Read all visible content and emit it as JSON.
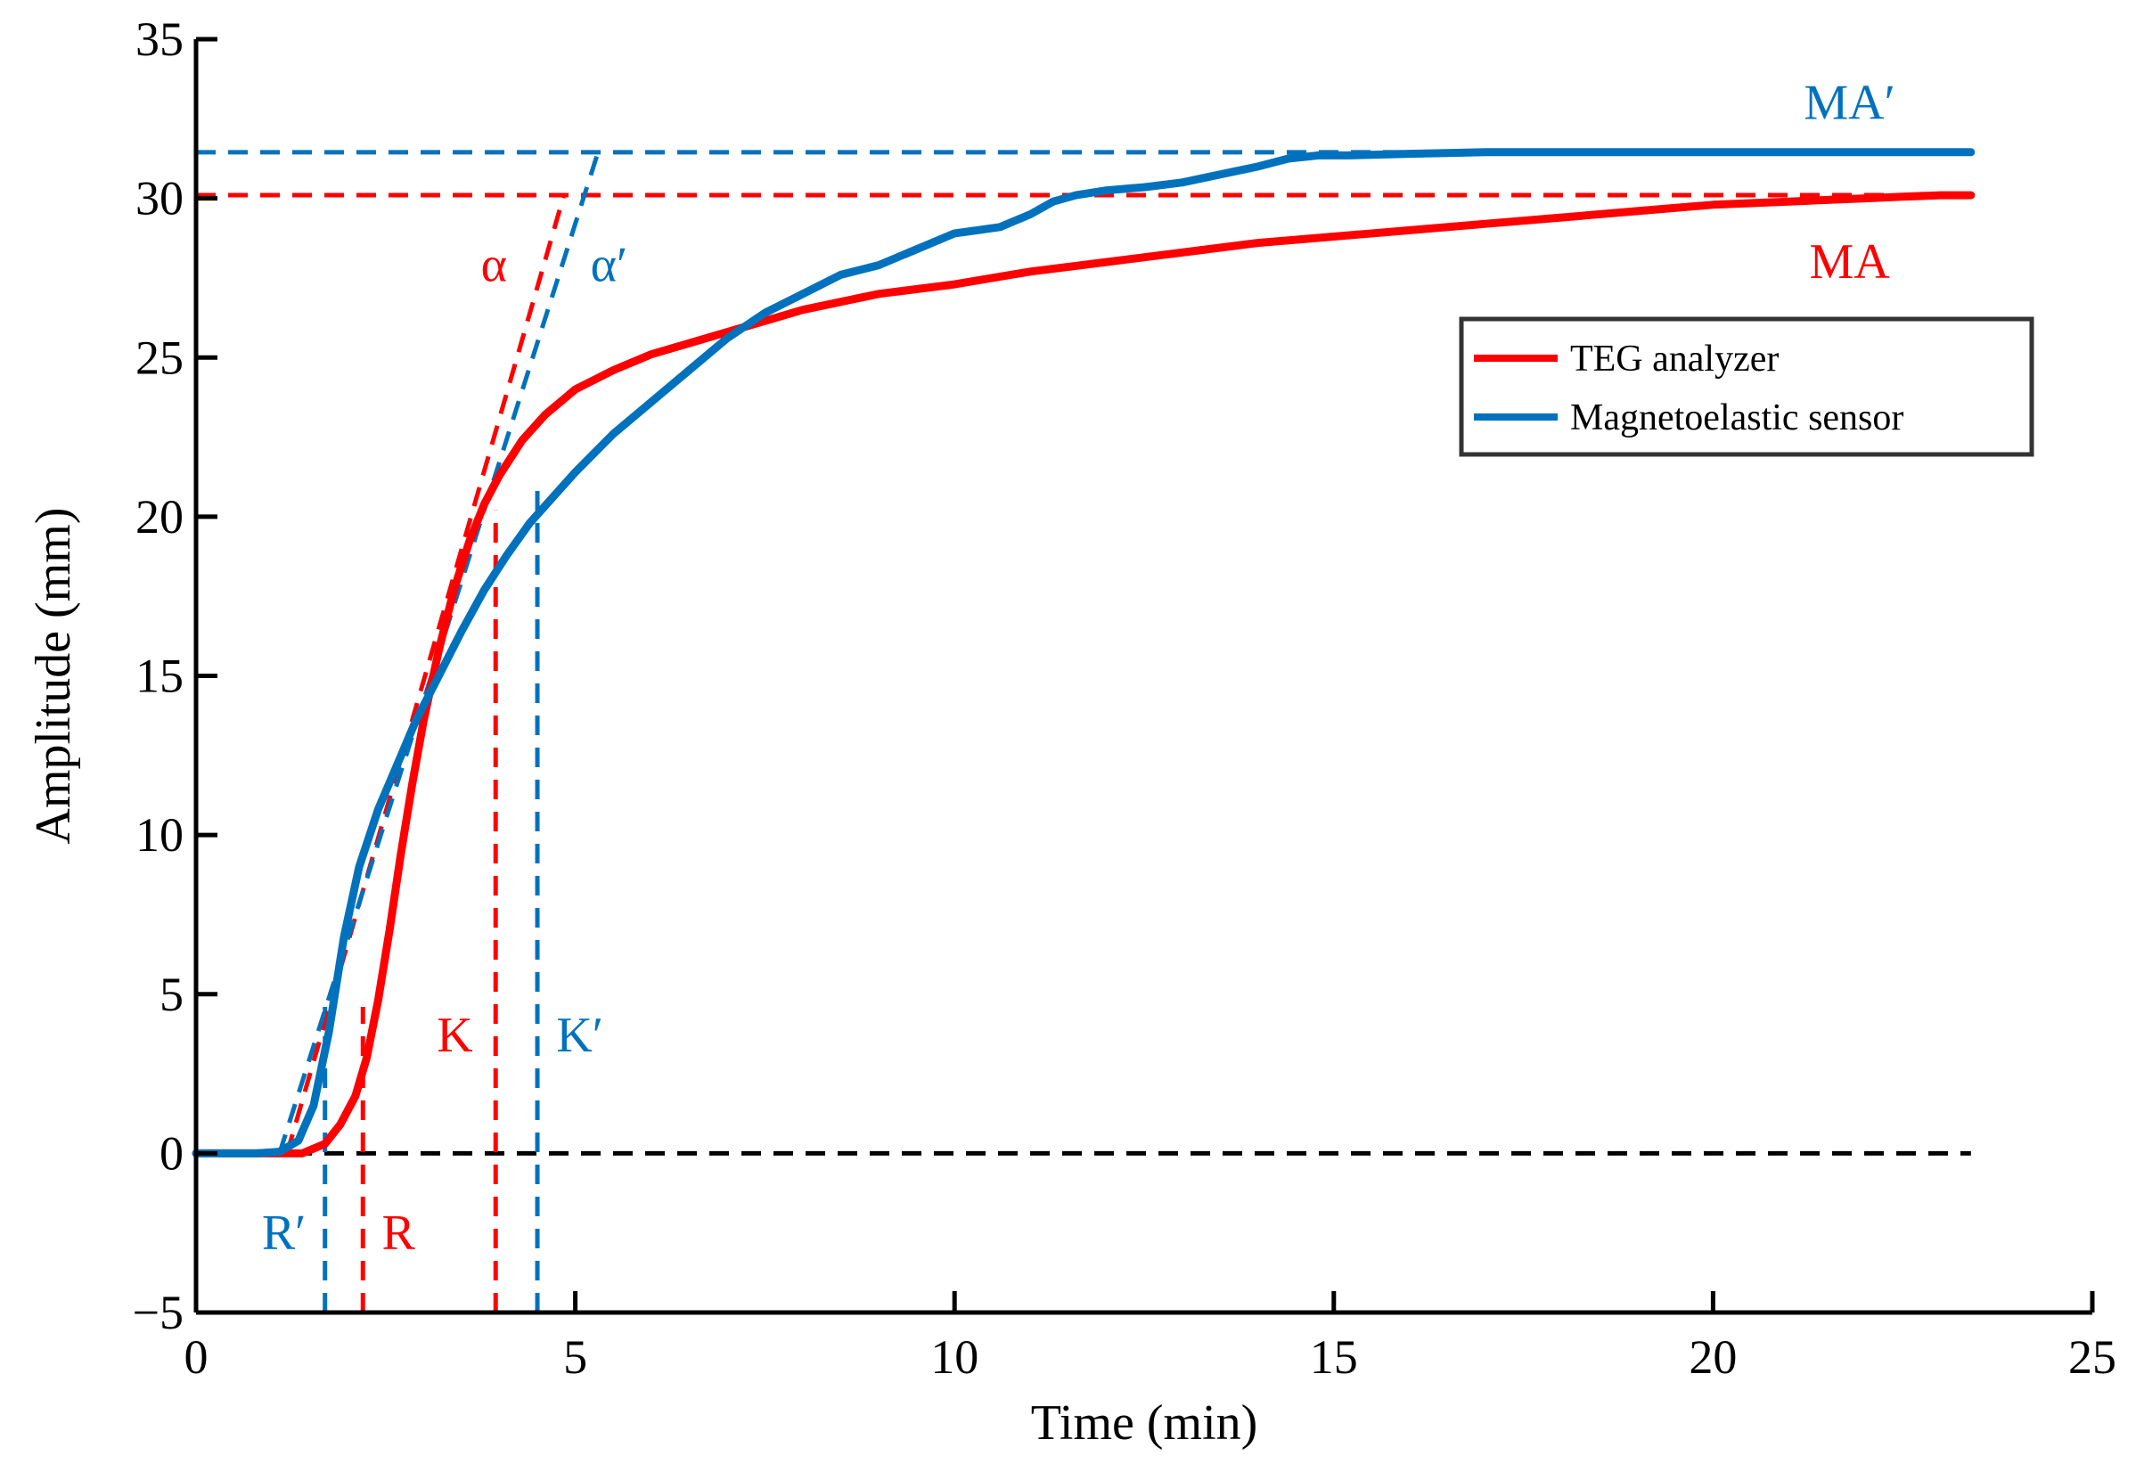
{
  "colors": {
    "teg": "#ff0000",
    "magneto": "#0072bd",
    "axis": "#000000",
    "background": "#ffffff"
  },
  "chart_data": {
    "type": "line",
    "title": "",
    "xlabel": "Time (min)",
    "ylabel": "Amplitude (mm)",
    "xlim": [
      0,
      25
    ],
    "ylim": [
      -5,
      35
    ],
    "xticks": [
      0,
      5,
      10,
      15,
      20,
      25
    ],
    "yticks": [
      -5,
      0,
      5,
      10,
      15,
      20,
      25,
      30,
      35
    ],
    "xtick_labels": [
      "0",
      "5",
      "10",
      "15",
      "20",
      "25"
    ],
    "ytick_labels": [
      "−5",
      "0",
      "5",
      "10",
      "15",
      "20",
      "25",
      "30",
      "35"
    ],
    "grid": false,
    "legend": {
      "position": "top-right",
      "entries": [
        {
          "name": "TEG analyzer",
          "color": "#ff0000"
        },
        {
          "name": "Magnetoelastic sensor",
          "color": "#0072bd"
        }
      ]
    },
    "series": [
      {
        "name": "TEG analyzer",
        "color": "#ff0000",
        "x": [
          0,
          1.0,
          1.4,
          1.7,
          1.9,
          2.1,
          2.25,
          2.4,
          2.55,
          2.7,
          2.85,
          3.0,
          3.2,
          3.4,
          3.6,
          3.8,
          4.0,
          4.3,
          4.6,
          5.0,
          5.5,
          6.0,
          7.0,
          8.0,
          9.0,
          10.0,
          11.0,
          12.0,
          13.0,
          14.0,
          15.0,
          16.0,
          17.0,
          18.0,
          19.0,
          20.0,
          21.0,
          22.0,
          22.5,
          23.0,
          23.4
        ],
        "y": [
          0,
          0,
          0,
          0.3,
          0.9,
          1.8,
          3.0,
          4.8,
          7.0,
          9.4,
          11.6,
          13.6,
          15.8,
          17.7,
          19.2,
          20.4,
          21.3,
          22.4,
          23.2,
          24.0,
          24.6,
          25.1,
          25.8,
          26.5,
          27.0,
          27.3,
          27.7,
          28.0,
          28.3,
          28.6,
          28.8,
          29.0,
          29.2,
          29.4,
          29.6,
          29.8,
          29.9,
          30.0,
          30.05,
          30.1,
          30.1
        ]
      },
      {
        "name": "Magnetoelastic sensor",
        "color": "#0072bd",
        "x": [
          0,
          0.8,
          1.1,
          1.35,
          1.55,
          1.75,
          1.95,
          2.15,
          2.4,
          2.65,
          2.9,
          3.2,
          3.5,
          3.8,
          4.1,
          4.4,
          4.7,
          5.0,
          5.5,
          6.0,
          6.5,
          7.0,
          7.5,
          8.0,
          8.5,
          9.0,
          9.3,
          9.6,
          10.0,
          10.3,
          10.6,
          11.0,
          11.3,
          11.6,
          12.0,
          12.5,
          13.0,
          13.5,
          14.0,
          14.4,
          14.8,
          15.2,
          16.0,
          17.0,
          18.0,
          19.0,
          20.0,
          21.0,
          22.0,
          23.0,
          23.4
        ],
        "y": [
          0,
          0,
          0.05,
          0.4,
          1.5,
          3.8,
          6.8,
          9.0,
          10.8,
          12.2,
          13.6,
          15.0,
          16.4,
          17.7,
          18.8,
          19.8,
          20.6,
          21.4,
          22.6,
          23.6,
          24.6,
          25.6,
          26.4,
          27.0,
          27.6,
          27.9,
          28.2,
          28.5,
          28.9,
          29.0,
          29.1,
          29.5,
          29.9,
          30.1,
          30.25,
          30.35,
          30.5,
          30.75,
          31.0,
          31.25,
          31.35,
          31.35,
          31.4,
          31.45,
          31.45,
          31.45,
          31.45,
          31.45,
          31.45,
          31.45,
          31.45
        ]
      }
    ],
    "reference_lines": [
      {
        "name": "baseline",
        "axis": "h",
        "value": 0,
        "from": 0,
        "to": 23.4,
        "color": "#000000"
      },
      {
        "name": "MA level",
        "axis": "h",
        "value": 30.1,
        "from": 0,
        "to": 23.4,
        "color": "#ff0000"
      },
      {
        "name": "MA' level",
        "axis": "h",
        "value": 31.45,
        "from": 0,
        "to": 23.4,
        "color": "#0072bd"
      },
      {
        "name": "R marker",
        "axis": "v",
        "value": 2.2,
        "from": -5,
        "to": 4.6,
        "color": "#ff0000"
      },
      {
        "name": "R' marker",
        "axis": "v",
        "value": 1.7,
        "from": -5,
        "to": 4.6,
        "color": "#0072bd"
      },
      {
        "name": "K marker",
        "axis": "v",
        "value": 3.95,
        "from": -5,
        "to": 20.2,
        "color": "#ff0000"
      },
      {
        "name": "K' marker",
        "axis": "v",
        "value": 4.5,
        "from": -5,
        "to": 21.2,
        "color": "#0072bd"
      },
      {
        "name": "alpha tangent",
        "axis": "segment",
        "points": [
          [
            1.2,
            0
          ],
          [
            4.85,
            30.1
          ]
        ],
        "color": "#ff0000"
      },
      {
        "name": "alpha' tangent",
        "axis": "segment",
        "points": [
          [
            1.1,
            0
          ],
          [
            5.3,
            31.45
          ]
        ],
        "color": "#0072bd"
      }
    ],
    "annotations": [
      {
        "text": "MA′",
        "x": 21.8,
        "y": 32.5,
        "color": "#0072bd",
        "anchor": "middle"
      },
      {
        "text": "MA",
        "x": 21.8,
        "y": 27.5,
        "color": "#ff0000",
        "anchor": "middle"
      },
      {
        "text": "α",
        "x": 4.1,
        "y": 27.4,
        "color": "#ff0000",
        "anchor": "end"
      },
      {
        "text": "α′",
        "x": 5.2,
        "y": 27.4,
        "color": "#0072bd",
        "anchor": "start"
      },
      {
        "text": "K",
        "x": 3.65,
        "y": 3.2,
        "color": "#ff0000",
        "anchor": "end"
      },
      {
        "text": "K′",
        "x": 4.75,
        "y": 3.2,
        "color": "#0072bd",
        "anchor": "start"
      },
      {
        "text": "R′",
        "x": 1.45,
        "y": -3.0,
        "color": "#0072bd",
        "anchor": "end"
      },
      {
        "text": "R",
        "x": 2.45,
        "y": -3.0,
        "color": "#ff0000",
        "anchor": "start"
      }
    ]
  }
}
